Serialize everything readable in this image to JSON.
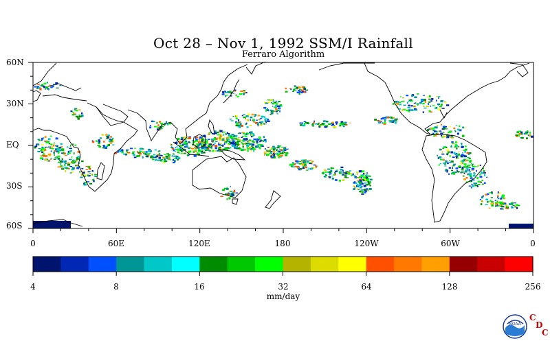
{
  "title": "Oct 28 – Nov 1, 1992 SSM/I Rainfall",
  "subtitle": "Ferraro Algorithm",
  "lat_labels": [
    "60N",
    "30N",
    "EQ",
    "30S",
    "60S"
  ],
  "lon_labels": [
    "0",
    "60E",
    "120E",
    "180",
    "120W",
    "60W",
    "0"
  ],
  "colorbar": {
    "tick_labels": [
      "4",
      "8",
      "16",
      "32",
      "64",
      "128",
      "256"
    ],
    "units": "mm/day",
    "colors": [
      "#00146e",
      "#0028b4",
      "#0050ff",
      "#009696",
      "#00c8c8",
      "#00ffff",
      "#008c00",
      "#00c800",
      "#00ff00",
      "#b4b400",
      "#dcdc00",
      "#ffff00",
      "#ff5000",
      "#ff7800",
      "#ffa000",
      "#960000",
      "#c80000",
      "#ff0000"
    ]
  },
  "logo": {
    "text": "NOAA",
    "letters": [
      "C",
      "D",
      "C"
    ]
  }
}
